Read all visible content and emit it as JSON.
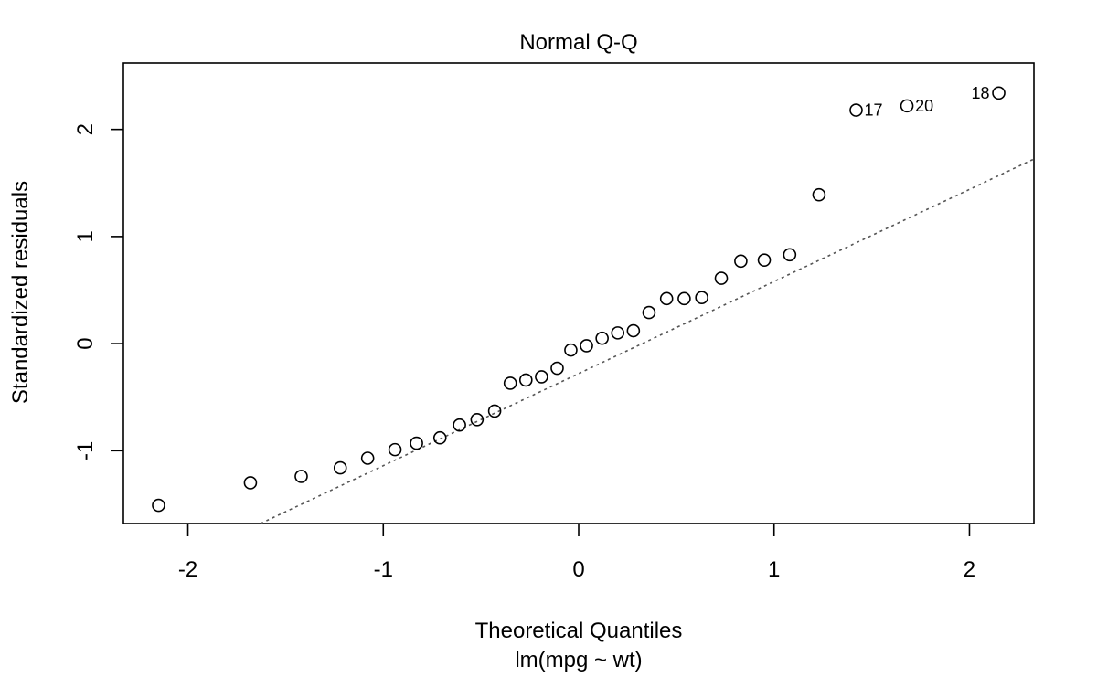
{
  "chart_data": {
    "type": "scatter",
    "title": "Normal Q-Q",
    "xlabel": "Theoretical Quantiles",
    "subtitle": "lm(mpg ~ wt)",
    "ylabel": "Standardized residuals",
    "xlim": [
      -2.33,
      2.33
    ],
    "ylim": [
      -1.68,
      2.62
    ],
    "xticks": [
      -2,
      -1,
      0,
      1,
      2
    ],
    "xtick_labels": [
      "-2",
      "-1",
      "0",
      "1",
      "2"
    ],
    "yticks": [
      -1,
      0,
      1,
      2
    ],
    "ytick_labels": [
      "-1",
      "0",
      "1",
      "2"
    ],
    "grid": false,
    "points": [
      {
        "x": -2.15,
        "y": -1.51
      },
      {
        "x": -1.68,
        "y": -1.3
      },
      {
        "x": -1.42,
        "y": -1.24
      },
      {
        "x": -1.22,
        "y": -1.16
      },
      {
        "x": -1.08,
        "y": -1.07
      },
      {
        "x": -0.94,
        "y": -0.99
      },
      {
        "x": -0.83,
        "y": -0.93
      },
      {
        "x": -0.71,
        "y": -0.88
      },
      {
        "x": -0.61,
        "y": -0.76
      },
      {
        "x": -0.52,
        "y": -0.71
      },
      {
        "x": -0.43,
        "y": -0.63
      },
      {
        "x": -0.35,
        "y": -0.37
      },
      {
        "x": -0.27,
        "y": -0.34
      },
      {
        "x": -0.19,
        "y": -0.31
      },
      {
        "x": -0.11,
        "y": -0.23
      },
      {
        "x": -0.04,
        "y": -0.06
      },
      {
        "x": 0.04,
        "y": -0.02
      },
      {
        "x": 0.12,
        "y": 0.05
      },
      {
        "x": 0.2,
        "y": 0.1
      },
      {
        "x": 0.28,
        "y": 0.12
      },
      {
        "x": 0.36,
        "y": 0.29
      },
      {
        "x": 0.45,
        "y": 0.42
      },
      {
        "x": 0.54,
        "y": 0.42
      },
      {
        "x": 0.63,
        "y": 0.43
      },
      {
        "x": 0.73,
        "y": 0.61
      },
      {
        "x": 0.83,
        "y": 0.77
      },
      {
        "x": 0.95,
        "y": 0.78
      },
      {
        "x": 1.08,
        "y": 0.83
      },
      {
        "x": 1.23,
        "y": 1.39
      },
      {
        "x": 1.42,
        "y": 2.18,
        "label": "17"
      },
      {
        "x": 1.68,
        "y": 2.22,
        "label": "20"
      },
      {
        "x": 2.15,
        "y": 2.34,
        "label": "18"
      }
    ],
    "reference_line": {
      "slope": 0.86,
      "intercept": -0.28,
      "style": "dotted"
    },
    "colors": {
      "points": "#000000",
      "line": "#555555",
      "frame": "#000000"
    }
  }
}
